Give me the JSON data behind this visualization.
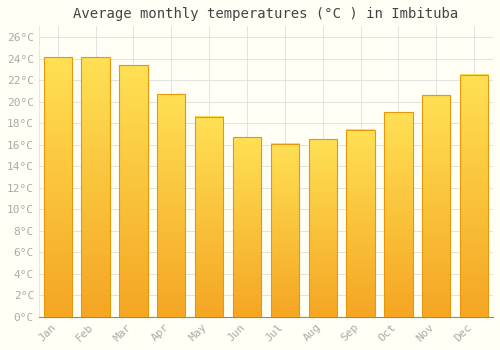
{
  "title": "Average monthly temperatures (°C ) in Imbituba",
  "months": [
    "Jan",
    "Feb",
    "Mar",
    "Apr",
    "May",
    "Jun",
    "Jul",
    "Aug",
    "Sep",
    "Oct",
    "Nov",
    "Dec"
  ],
  "values": [
    24.1,
    24.1,
    23.4,
    20.7,
    18.6,
    16.7,
    16.1,
    16.5,
    17.4,
    19.0,
    20.6,
    22.5
  ],
  "bar_color_bottom": "#F5A623",
  "bar_color_top": "#FFD966",
  "bar_edge_color": "#E8960A",
  "background_color": "#FFFFF5",
  "grid_color": "#DDDDDD",
  "ytick_labels": [
    "0°C",
    "2°C",
    "4°C",
    "6°C",
    "8°C",
    "10°C",
    "12°C",
    "14°C",
    "16°C",
    "18°C",
    "20°C",
    "22°C",
    "24°C",
    "26°C"
  ],
  "ytick_values": [
    0,
    2,
    4,
    6,
    8,
    10,
    12,
    14,
    16,
    18,
    20,
    22,
    24,
    26
  ],
  "ylim": [
    0,
    27
  ],
  "title_fontsize": 10,
  "tick_fontsize": 8,
  "tick_color": "#AAAAAA",
  "title_color": "#444444",
  "bar_width": 0.75,
  "n_gradient": 100
}
